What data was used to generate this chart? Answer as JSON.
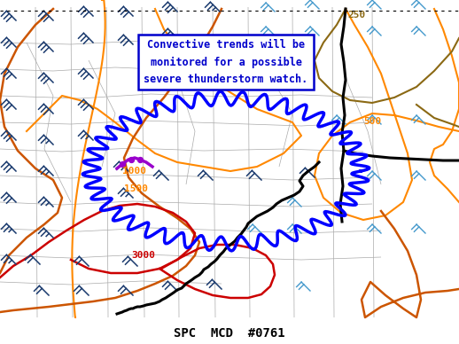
{
  "title": "SPC  MCD  #0761",
  "annotation_text": "Convective trends will be\nmonitored for a possible\nsevere thunderstorm watch.",
  "bg_color": "#ffffff",
  "figsize": [
    5.18,
    3.88
  ],
  "dpi": 100,
  "annotation_box_color": "#0000cc",
  "annotation_text_color": "#0000cc",
  "annotation_bg": "#ffffff",
  "orange1": "#ff8800",
  "orange2": "#ff7700",
  "brown1": "#8b6914",
  "red1": "#cc0000",
  "purple1": "#9900cc",
  "blue_mcd": "#0000ff",
  "black1": "#000000",
  "barb_dark": "#1a3a6e",
  "barb_cyan": "#4499cc",
  "barb_light_cyan": "#66bbdd"
}
